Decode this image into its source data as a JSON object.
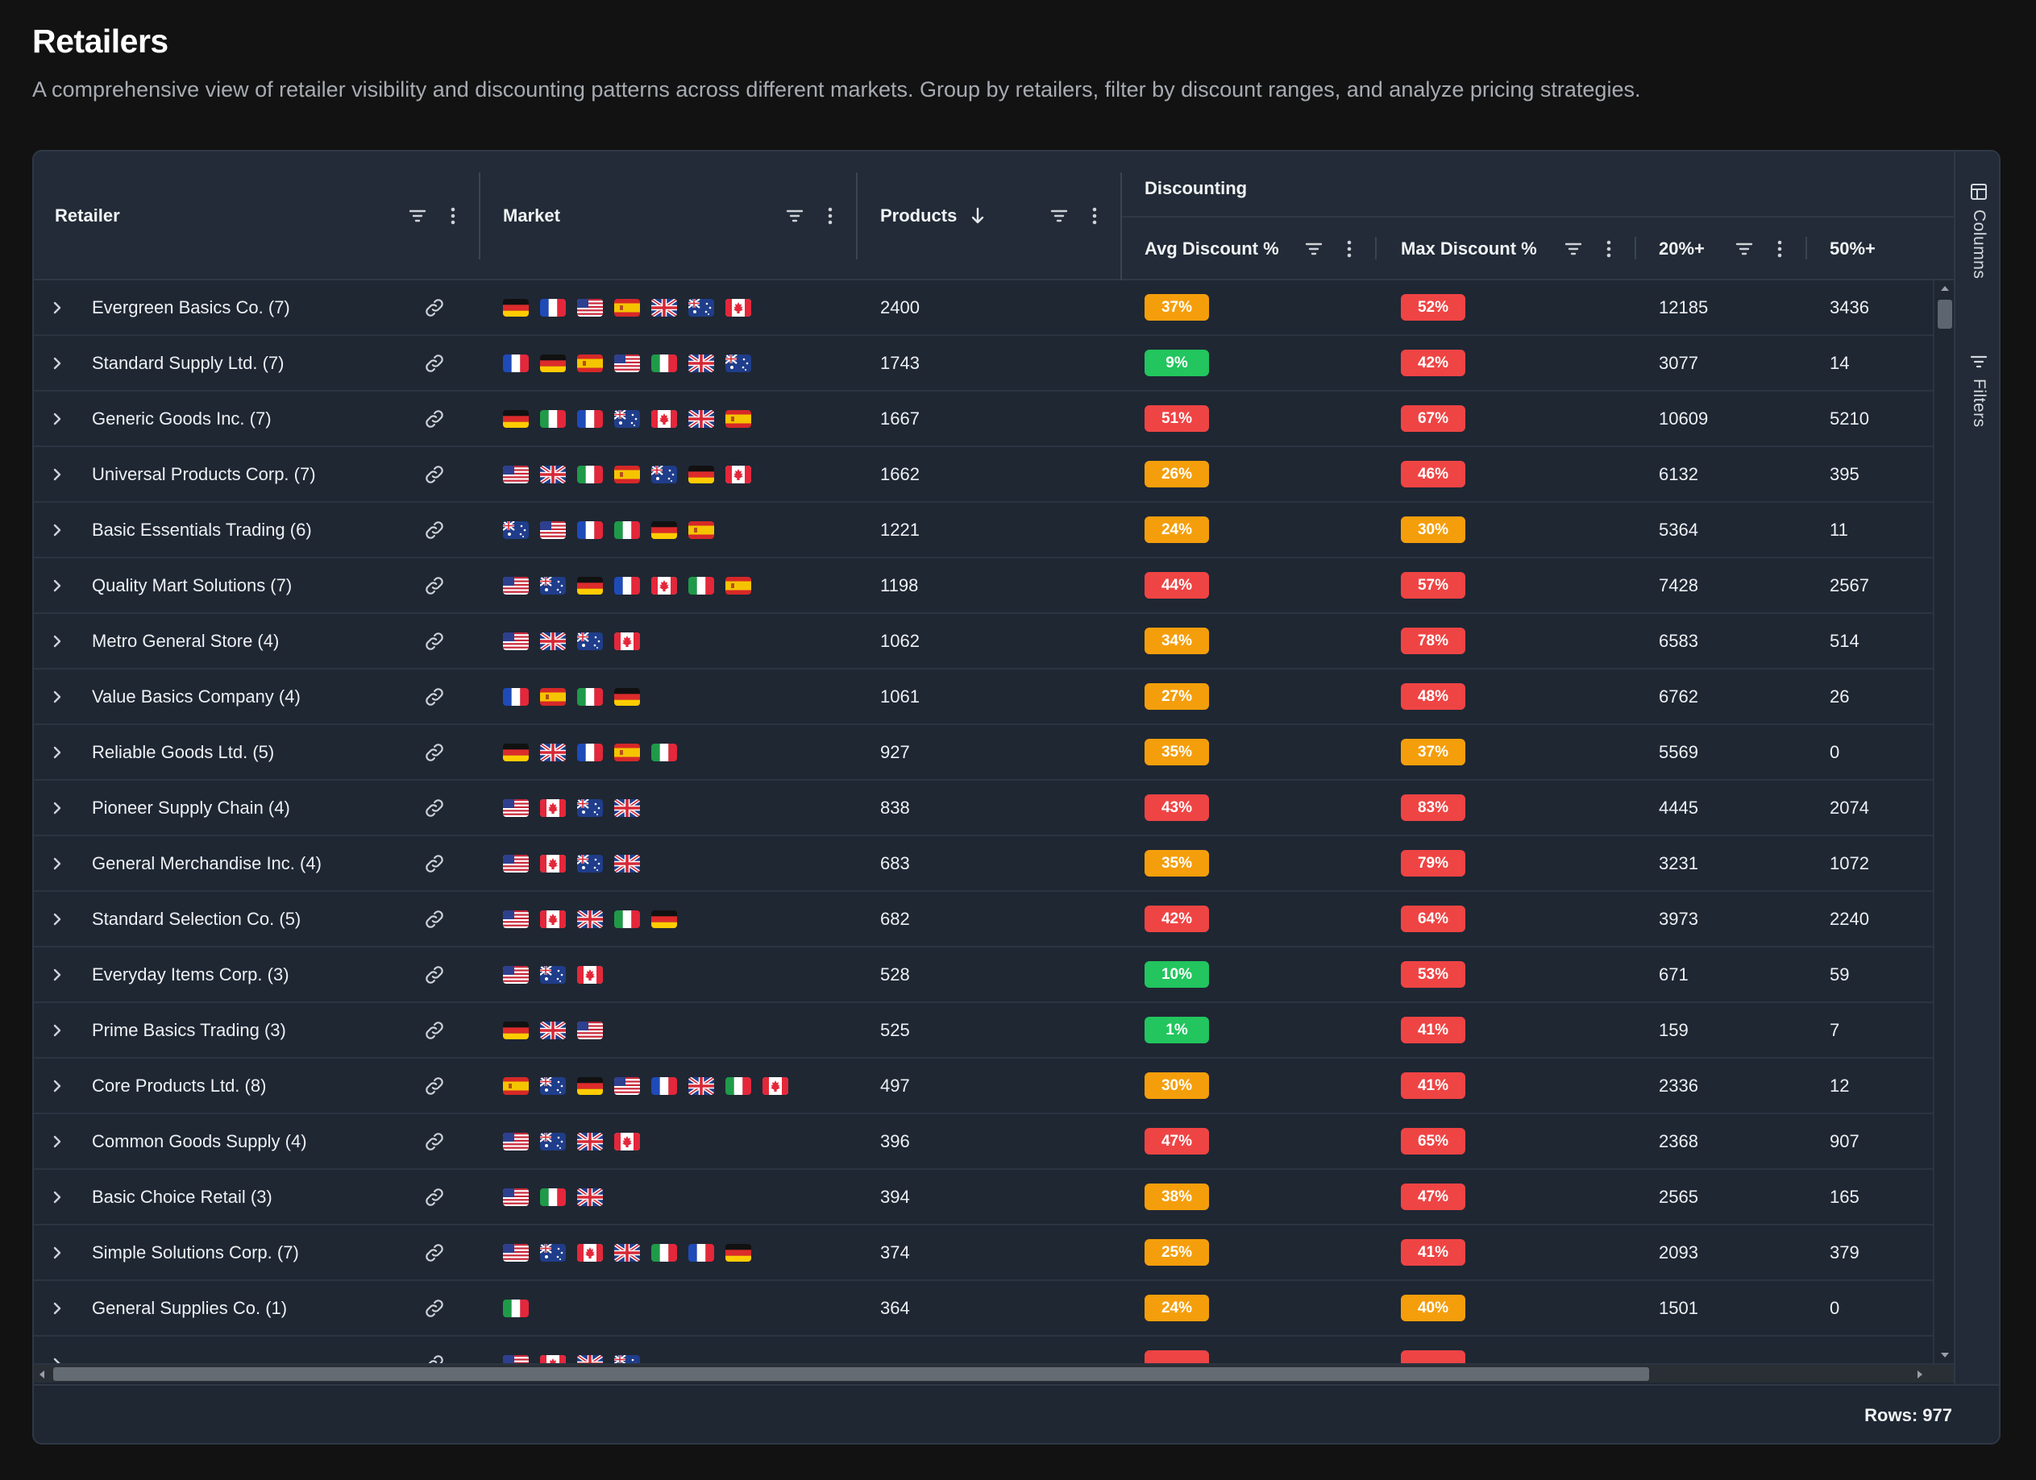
{
  "page": {
    "title": "Retailers",
    "subtitle": "A comprehensive view of retailer visibility and discounting patterns across different markets. Group by retailers, filter by discount ranges, and analyze pricing strategies."
  },
  "columns": {
    "retailer": "Retailer",
    "market": "Market",
    "products": "Products",
    "group": "Discounting",
    "avg": "Avg Discount %",
    "max": "Max Discount %",
    "p20": "20%+",
    "p50": "50%+"
  },
  "side_panel": {
    "columns": "Columns",
    "filters": "Filters"
  },
  "footer": {
    "rows": "Rows: 977"
  },
  "colors": {
    "green": "#22c55e",
    "orange": "#f59e0b",
    "red": "#ef4444"
  },
  "rows": [
    {
      "retailer": "Evergreen Basics Co. (7)",
      "markets": [
        "de",
        "fr",
        "us",
        "es",
        "gb",
        "au",
        "ca"
      ],
      "products": "2400",
      "avg": "37%",
      "avg_color": "orange",
      "max": "52%",
      "max_color": "red",
      "p20": "12185",
      "p50": "3436"
    },
    {
      "retailer": "Standard Supply Ltd. (7)",
      "markets": [
        "fr",
        "de",
        "es",
        "us",
        "it",
        "gb",
        "au"
      ],
      "products": "1743",
      "avg": "9%",
      "avg_color": "green",
      "max": "42%",
      "max_color": "red",
      "p20": "3077",
      "p50": "14"
    },
    {
      "retailer": "Generic Goods Inc. (7)",
      "markets": [
        "de",
        "it",
        "fr",
        "au",
        "ca",
        "gb",
        "es"
      ],
      "products": "1667",
      "avg": "51%",
      "avg_color": "red",
      "max": "67%",
      "max_color": "red",
      "p20": "10609",
      "p50": "5210"
    },
    {
      "retailer": "Universal Products Corp. (7)",
      "markets": [
        "us",
        "gb",
        "it",
        "es",
        "au",
        "de",
        "ca"
      ],
      "products": "1662",
      "avg": "26%",
      "avg_color": "orange",
      "max": "46%",
      "max_color": "red",
      "p20": "6132",
      "p50": "395"
    },
    {
      "retailer": "Basic Essentials Trading (6)",
      "markets": [
        "au",
        "us",
        "fr",
        "it",
        "de",
        "es"
      ],
      "products": "1221",
      "avg": "24%",
      "avg_color": "orange",
      "max": "30%",
      "max_color": "orange",
      "p20": "5364",
      "p50": "11"
    },
    {
      "retailer": "Quality Mart Solutions (7)",
      "markets": [
        "us",
        "au",
        "de",
        "fr",
        "ca",
        "it",
        "es"
      ],
      "products": "1198",
      "avg": "44%",
      "avg_color": "red",
      "max": "57%",
      "max_color": "red",
      "p20": "7428",
      "p50": "2567"
    },
    {
      "retailer": "Metro General Store (4)",
      "markets": [
        "us",
        "gb",
        "au",
        "ca"
      ],
      "products": "1062",
      "avg": "34%",
      "avg_color": "orange",
      "max": "78%",
      "max_color": "red",
      "p20": "6583",
      "p50": "514"
    },
    {
      "retailer": "Value Basics Company (4)",
      "markets": [
        "fr",
        "es",
        "it",
        "de"
      ],
      "products": "1061",
      "avg": "27%",
      "avg_color": "orange",
      "max": "48%",
      "max_color": "red",
      "p20": "6762",
      "p50": "26"
    },
    {
      "retailer": "Reliable Goods Ltd. (5)",
      "markets": [
        "de",
        "gb",
        "fr",
        "es",
        "it"
      ],
      "products": "927",
      "avg": "35%",
      "avg_color": "orange",
      "max": "37%",
      "max_color": "orange",
      "p20": "5569",
      "p50": "0"
    },
    {
      "retailer": "Pioneer Supply Chain (4)",
      "markets": [
        "us",
        "ca",
        "au",
        "gb"
      ],
      "products": "838",
      "avg": "43%",
      "avg_color": "red",
      "max": "83%",
      "max_color": "red",
      "p20": "4445",
      "p50": "2074"
    },
    {
      "retailer": "General Merchandise Inc. (4)",
      "markets": [
        "us",
        "ca",
        "au",
        "gb"
      ],
      "products": "683",
      "avg": "35%",
      "avg_color": "orange",
      "max": "79%",
      "max_color": "red",
      "p20": "3231",
      "p50": "1072"
    },
    {
      "retailer": "Standard Selection Co. (5)",
      "markets": [
        "us",
        "ca",
        "gb",
        "it",
        "de"
      ],
      "products": "682",
      "avg": "42%",
      "avg_color": "red",
      "max": "64%",
      "max_color": "red",
      "p20": "3973",
      "p50": "2240"
    },
    {
      "retailer": "Everyday Items Corp. (3)",
      "markets": [
        "us",
        "au",
        "ca"
      ],
      "products": "528",
      "avg": "10%",
      "avg_color": "green",
      "max": "53%",
      "max_color": "red",
      "p20": "671",
      "p50": "59"
    },
    {
      "retailer": "Prime Basics Trading (3)",
      "markets": [
        "de",
        "gb",
        "us"
      ],
      "products": "525",
      "avg": "1%",
      "avg_color": "green",
      "max": "41%",
      "max_color": "red",
      "p20": "159",
      "p50": "7"
    },
    {
      "retailer": "Core Products Ltd. (8)",
      "markets": [
        "es",
        "au",
        "de",
        "us",
        "fr",
        "gb",
        "it",
        "ca"
      ],
      "products": "497",
      "avg": "30%",
      "avg_color": "orange",
      "max": "41%",
      "max_color": "red",
      "p20": "2336",
      "p50": "12"
    },
    {
      "retailer": "Common Goods Supply (4)",
      "markets": [
        "us",
        "au",
        "gb",
        "ca"
      ],
      "products": "396",
      "avg": "47%",
      "avg_color": "red",
      "max": "65%",
      "max_color": "red",
      "p20": "2368",
      "p50": "907"
    },
    {
      "retailer": "Basic Choice Retail (3)",
      "markets": [
        "us",
        "it",
        "gb"
      ],
      "products": "394",
      "avg": "38%",
      "avg_color": "orange",
      "max": "47%",
      "max_color": "red",
      "p20": "2565",
      "p50": "165"
    },
    {
      "retailer": "Simple Solutions Corp. (7)",
      "markets": [
        "us",
        "au",
        "ca",
        "gb",
        "it",
        "fr",
        "de"
      ],
      "products": "374",
      "avg": "25%",
      "avg_color": "orange",
      "max": "41%",
      "max_color": "red",
      "p20": "2093",
      "p50": "379"
    },
    {
      "retailer": "General Supplies Co. (1)",
      "markets": [
        "it"
      ],
      "products": "364",
      "avg": "24%",
      "avg_color": "orange",
      "max": "40%",
      "max_color": "orange",
      "p20": "1501",
      "p50": "0"
    },
    {
      "retailer": "",
      "markets": [
        "us",
        "ca",
        "gb",
        "au"
      ],
      "products": "",
      "avg": "",
      "avg_color": "red",
      "max": "",
      "max_color": "red",
      "p20": "",
      "p50": ""
    }
  ]
}
